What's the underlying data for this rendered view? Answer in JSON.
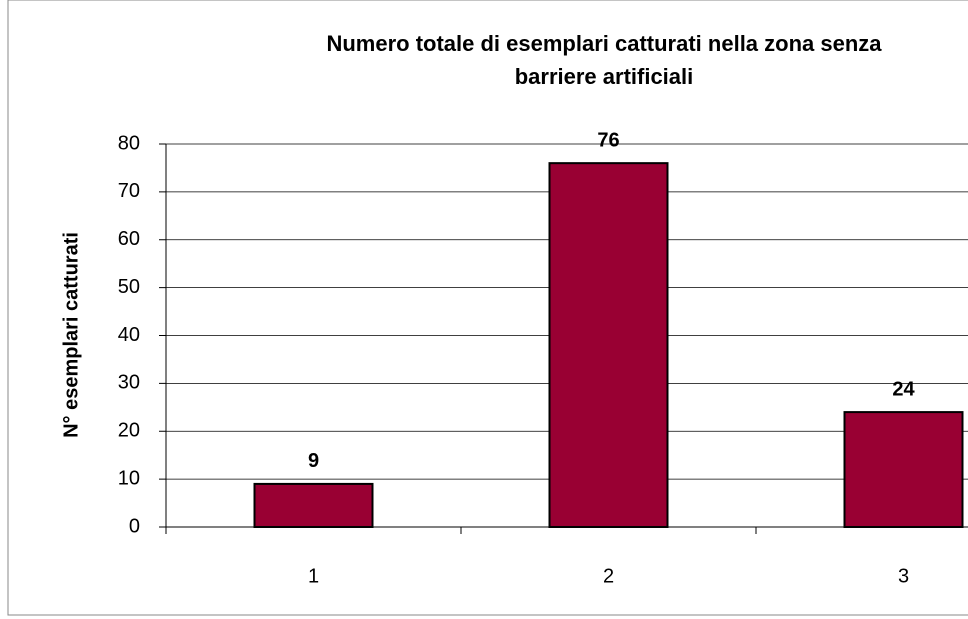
{
  "chart_data": {
    "type": "bar",
    "title": [
      "Numero totale di esemplari catturati nella zona senza",
      "barriere artificiali"
    ],
    "y_label": "N° esemplari catturati",
    "categories": [
      "1",
      "2",
      "3"
    ],
    "values": [
      9,
      76,
      24
    ],
    "color": "#990033",
    "ylim": [
      0,
      80
    ],
    "yticks": [
      0,
      10,
      20,
      30,
      40,
      50,
      60,
      70,
      80
    ],
    "grid": true,
    "data_labels": true
  }
}
